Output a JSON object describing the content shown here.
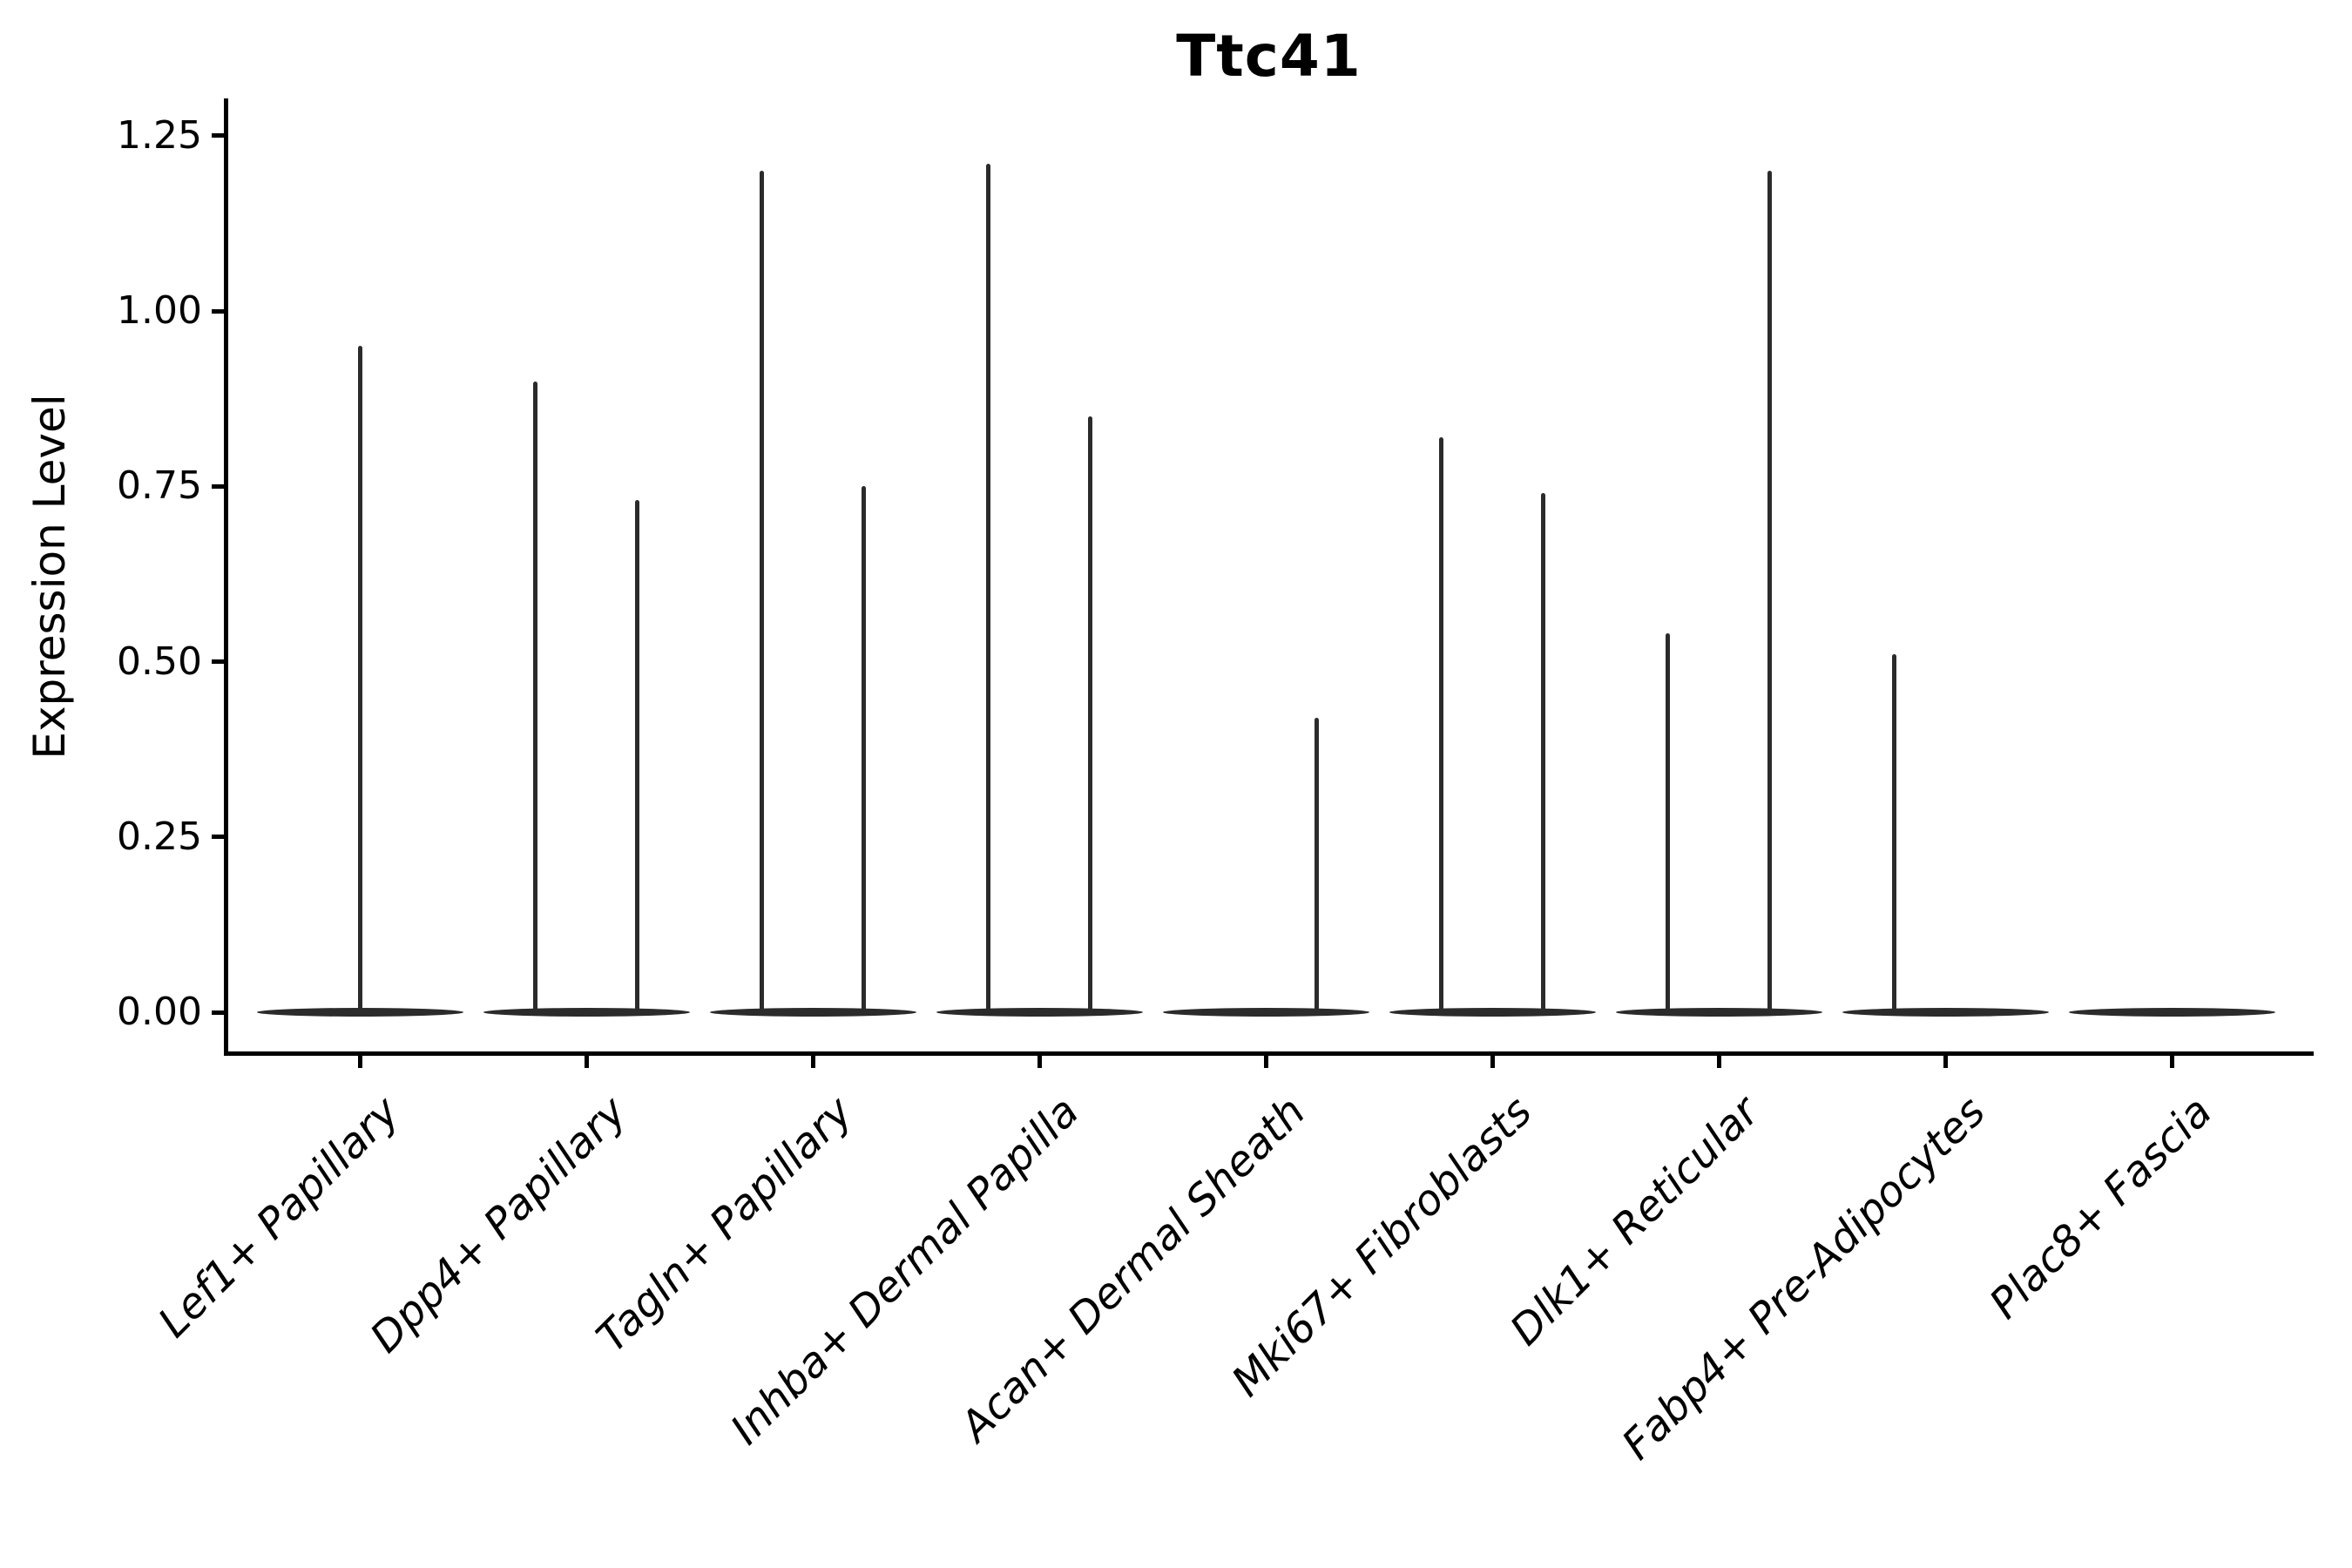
{
  "chart_data": {
    "type": "violin",
    "title": "Ttc41",
    "ylabel": "Expression Level",
    "xlabel": "",
    "grid": false,
    "legend": null,
    "background_color": "#ffffff",
    "axis_color": "#000000",
    "ink_color": "#2b2b2b",
    "ylim": [
      -0.06,
      1.3
    ],
    "yticks": [
      {
        "value": 0.0,
        "label": "0.00"
      },
      {
        "value": 0.25,
        "label": "0.25"
      },
      {
        "value": 0.5,
        "label": "0.50"
      },
      {
        "value": 0.75,
        "label": "0.75"
      },
      {
        "value": 1.0,
        "label": "1.00"
      },
      {
        "value": 1.25,
        "label": "1.25"
      }
    ],
    "categories": [
      "Lef1+ Papillary",
      "Dpp4+ Papillary",
      "Tagln+ Papillary",
      "Inhba+ Dermal Papilla",
      "Acan+ Dermal Sheath",
      "Mki67+ Fibroblasts",
      "Dlk1+ Reticular",
      "Fabp4+ Pre-Adipocytes",
      "Plac8+ Fascia"
    ],
    "violins": [
      {
        "category": "Lef1+ Papillary",
        "base_value": 0,
        "spikes": [
          {
            "offset": 0.0,
            "max": 0.95
          }
        ]
      },
      {
        "category": "Dpp4+ Papillary",
        "base_value": 0,
        "spikes": [
          {
            "offset": -0.225,
            "max": 0.9
          },
          {
            "offset": 0.225,
            "max": 0.73
          }
        ]
      },
      {
        "category": "Tagln+ Papillary",
        "base_value": 0,
        "spikes": [
          {
            "offset": -0.225,
            "max": 1.2
          },
          {
            "offset": 0.225,
            "max": 0.75
          }
        ]
      },
      {
        "category": "Inhba+ Dermal Papilla",
        "base_value": 0,
        "spikes": [
          {
            "offset": -0.225,
            "max": 1.21
          },
          {
            "offset": 0.225,
            "max": 0.85
          }
        ]
      },
      {
        "category": "Acan+ Dermal Sheath",
        "base_value": 0,
        "spikes": [
          {
            "offset": 0.225,
            "max": 0.42
          }
        ]
      },
      {
        "category": "Mki67+ Fibroblasts",
        "base_value": 0,
        "spikes": [
          {
            "offset": -0.225,
            "max": 0.82
          },
          {
            "offset": 0.225,
            "max": 0.74
          }
        ]
      },
      {
        "category": "Dlk1+ Reticular",
        "base_value": 0,
        "spikes": [
          {
            "offset": -0.225,
            "max": 0.54
          },
          {
            "offset": 0.225,
            "max": 1.2
          }
        ]
      },
      {
        "category": "Fabp4+ Pre-Adipocytes",
        "base_value": 0,
        "spikes": [
          {
            "offset": -0.225,
            "max": 0.51
          }
        ]
      },
      {
        "category": "Plac8+ Fascia",
        "base_value": 0,
        "spikes": []
      }
    ]
  }
}
